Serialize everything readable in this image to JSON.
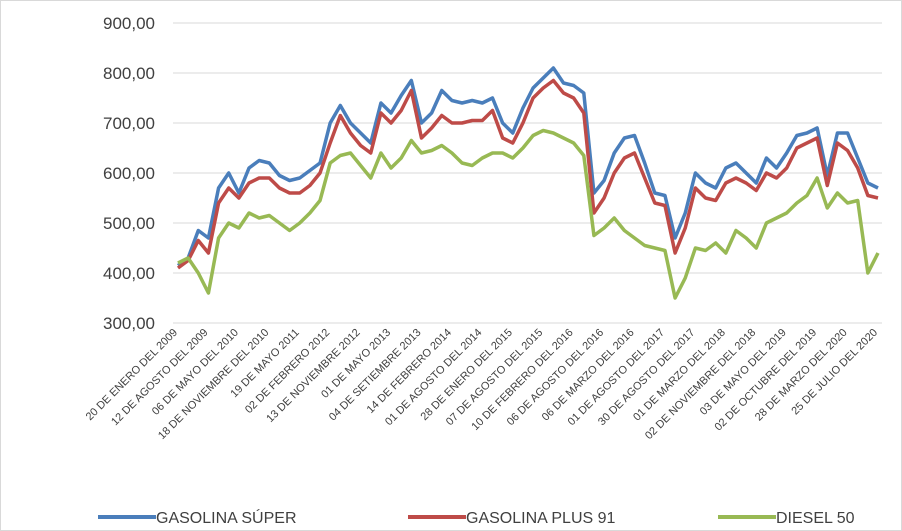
{
  "chart_data": {
    "type": "line",
    "categories": [
      "20 DE ENERO DEL 2009",
      null,
      null,
      "12 DE AGOSTO DEL 2009",
      null,
      null,
      "06 DE MAYO DEL 2010",
      null,
      null,
      "18 DE NOVIEMBRE DEL 2010",
      null,
      null,
      "19 DE MAYO 2011",
      null,
      null,
      "02 DE FEBRERO 2012",
      null,
      null,
      "13 DE NOVIEMBRE 2012",
      null,
      null,
      "01 DE MAYO 2013",
      null,
      null,
      "04 DE SETIEMBRE 2013",
      null,
      null,
      "14 DE FEBRERO 2014",
      null,
      null,
      "01 DE AGOSTO DEL 2014",
      null,
      null,
      "28 DE ENERO DEL 2015",
      null,
      null,
      "07 DE AGOSTO DEL 2015",
      null,
      null,
      "10 DE FEBRERO DEL 2016",
      null,
      null,
      "06 DE AGOSTO DEL 2016",
      null,
      null,
      "06 DE MARZO DEL 2016",
      null,
      null,
      "01 DE AGOSTO DEL 2017",
      null,
      null,
      "30 DE AGOSTO DEL 2017",
      null,
      null,
      "01 DE MARZO DEL 2018",
      null,
      null,
      "02 DE NOVIEMBRE DEL 2018",
      null,
      null,
      "03 DE MAYO DEL 2019",
      null,
      null,
      "02 DE OCTUBRE DEL 2019",
      null,
      null,
      "28 DE MARZO DEL 2020",
      null,
      null,
      "25 DE JULIO DEL 2020"
    ],
    "series": [
      {
        "name": "GASOLINA SÚPER",
        "color": "#4a7ebb",
        "values": [
          415,
          430,
          485,
          470,
          570,
          600,
          560,
          610,
          625,
          620,
          595,
          585,
          590,
          605,
          620,
          700,
          735,
          700,
          680,
          660,
          740,
          720,
          755,
          785,
          700,
          720,
          765,
          745,
          740,
          745,
          740,
          750,
          700,
          680,
          730,
          770,
          790,
          810,
          780,
          775,
          760,
          560,
          585,
          640,
          670,
          675,
          620,
          560,
          555,
          470,
          520,
          600,
          580,
          570,
          610,
          620,
          600,
          580,
          630,
          610,
          640,
          675,
          680,
          690,
          595,
          680,
          680,
          630,
          580,
          570
        ]
      },
      {
        "name": "GASOLINA PLUS 91",
        "color": "#be4b48",
        "values": [
          410,
          425,
          465,
          440,
          540,
          570,
          550,
          580,
          590,
          590,
          570,
          560,
          560,
          575,
          600,
          660,
          715,
          680,
          655,
          640,
          720,
          700,
          725,
          765,
          670,
          690,
          715,
          700,
          700,
          705,
          705,
          725,
          670,
          660,
          700,
          750,
          770,
          785,
          760,
          750,
          720,
          520,
          550,
          600,
          630,
          640,
          590,
          540,
          535,
          440,
          490,
          570,
          550,
          545,
          580,
          590,
          580,
          565,
          600,
          590,
          610,
          650,
          660,
          670,
          575,
          660,
          645,
          610,
          555,
          550
        ]
      },
      {
        "name": "DIESEL 50",
        "color": "#98b954",
        "values": [
          420,
          430,
          400,
          360,
          470,
          500,
          490,
          520,
          510,
          515,
          500,
          485,
          500,
          520,
          545,
          620,
          635,
          640,
          615,
          590,
          640,
          610,
          630,
          665,
          640,
          645,
          655,
          640,
          620,
          615,
          630,
          640,
          640,
          630,
          650,
          675,
          685,
          680,
          670,
          660,
          635,
          475,
          490,
          510,
          485,
          470,
          455,
          450,
          445,
          350,
          390,
          450,
          445,
          460,
          440,
          485,
          470,
          450,
          500,
          510,
          520,
          540,
          555,
          590,
          530,
          560,
          540,
          545,
          400,
          440
        ]
      }
    ],
    "ylim": [
      300,
      900
    ],
    "yticks": [
      {
        "value": 300,
        "label": "300,00"
      },
      {
        "value": 400,
        "label": "400,00"
      },
      {
        "value": 500,
        "label": "500,00"
      },
      {
        "value": 600,
        "label": "600,00"
      },
      {
        "value": 700,
        "label": "700,00"
      },
      {
        "value": 800,
        "label": "800,00"
      },
      {
        "value": 900,
        "label": "900,00"
      }
    ],
    "grid": true,
    "legend": "bottom"
  }
}
